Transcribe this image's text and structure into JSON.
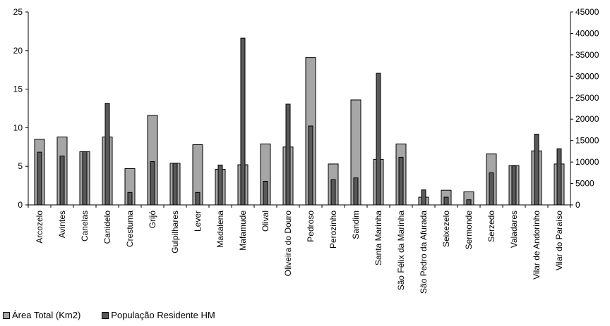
{
  "chart_data": {
    "type": "bar",
    "categories": [
      "Arcozelo",
      "Avintes",
      "Canelas",
      "Canidelo",
      "Crestuma",
      "Grijó",
      "Gulpilhares",
      "Lever",
      "Madalena",
      "Mafamude",
      "Olival",
      "Oliveira do Douro",
      "Pedroso",
      "Perozinho",
      "Sandim",
      "Santa Marinha",
      "São Félix da Marinha",
      "São Pedro da Afurada",
      "Seixezelo",
      "Sermonde",
      "Serzedo",
      "Valadares",
      "Vilar de Andorinho",
      "Vilar do Paraíso"
    ],
    "series": [
      {
        "name": "Área Total (Km2)",
        "axis": "left",
        "color": "#a6a6a6",
        "values": [
          8.5,
          8.8,
          6.9,
          8.8,
          4.7,
          11.6,
          5.4,
          7.8,
          4.6,
          5.2,
          7.9,
          7.5,
          19.1,
          5.3,
          13.6,
          5.9,
          7.9,
          1.0,
          1.9,
          1.7,
          6.6,
          5.1,
          7.0,
          5.3
        ]
      },
      {
        "name": "População Residente HM",
        "axis": "right",
        "color": "#595959",
        "values": [
          12300,
          11400,
          12400,
          23700,
          2900,
          10100,
          9700,
          2900,
          9300,
          38900,
          5500,
          23500,
          18400,
          5900,
          6300,
          30700,
          11100,
          3500,
          1800,
          1200,
          7500,
          9100,
          16500,
          13100
        ]
      }
    ],
    "y_left": {
      "min": 0,
      "max": 25,
      "ticks": [
        "0",
        "5",
        "10",
        "15",
        "20",
        "25"
      ]
    },
    "y_right": {
      "min": 0,
      "max": 45000,
      "ticks": [
        "0",
        "5000",
        "10000",
        "15000",
        "20000",
        "25000",
        "30000",
        "35000",
        "40000",
        "45000"
      ]
    },
    "legend": {
      "position": "bottom-left",
      "items": [
        "Área Total (Km2)",
        "População Residente HM"
      ]
    },
    "grid": false
  }
}
